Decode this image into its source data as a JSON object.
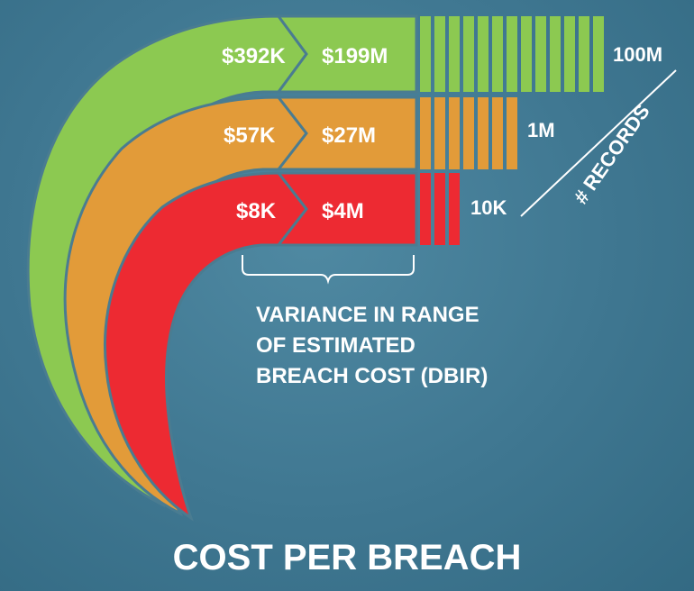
{
  "title": "COST PER BREACH",
  "tiers": [
    {
      "records": "100M",
      "low": "$392K",
      "high": "$199M",
      "color": "#8cc951"
    },
    {
      "records": "1M",
      "low": "$57K",
      "high": "$27M",
      "color": "#e29b39"
    },
    {
      "records": "10K",
      "low": "$8K",
      "high": "$4M",
      "color": "#ed2a32"
    }
  ],
  "records_axis_label": "# RECORDS",
  "variance_label": [
    "VARIANCE IN RANGE",
    "OF ESTIMATED",
    "BREACH COST (DBIR)"
  ]
}
